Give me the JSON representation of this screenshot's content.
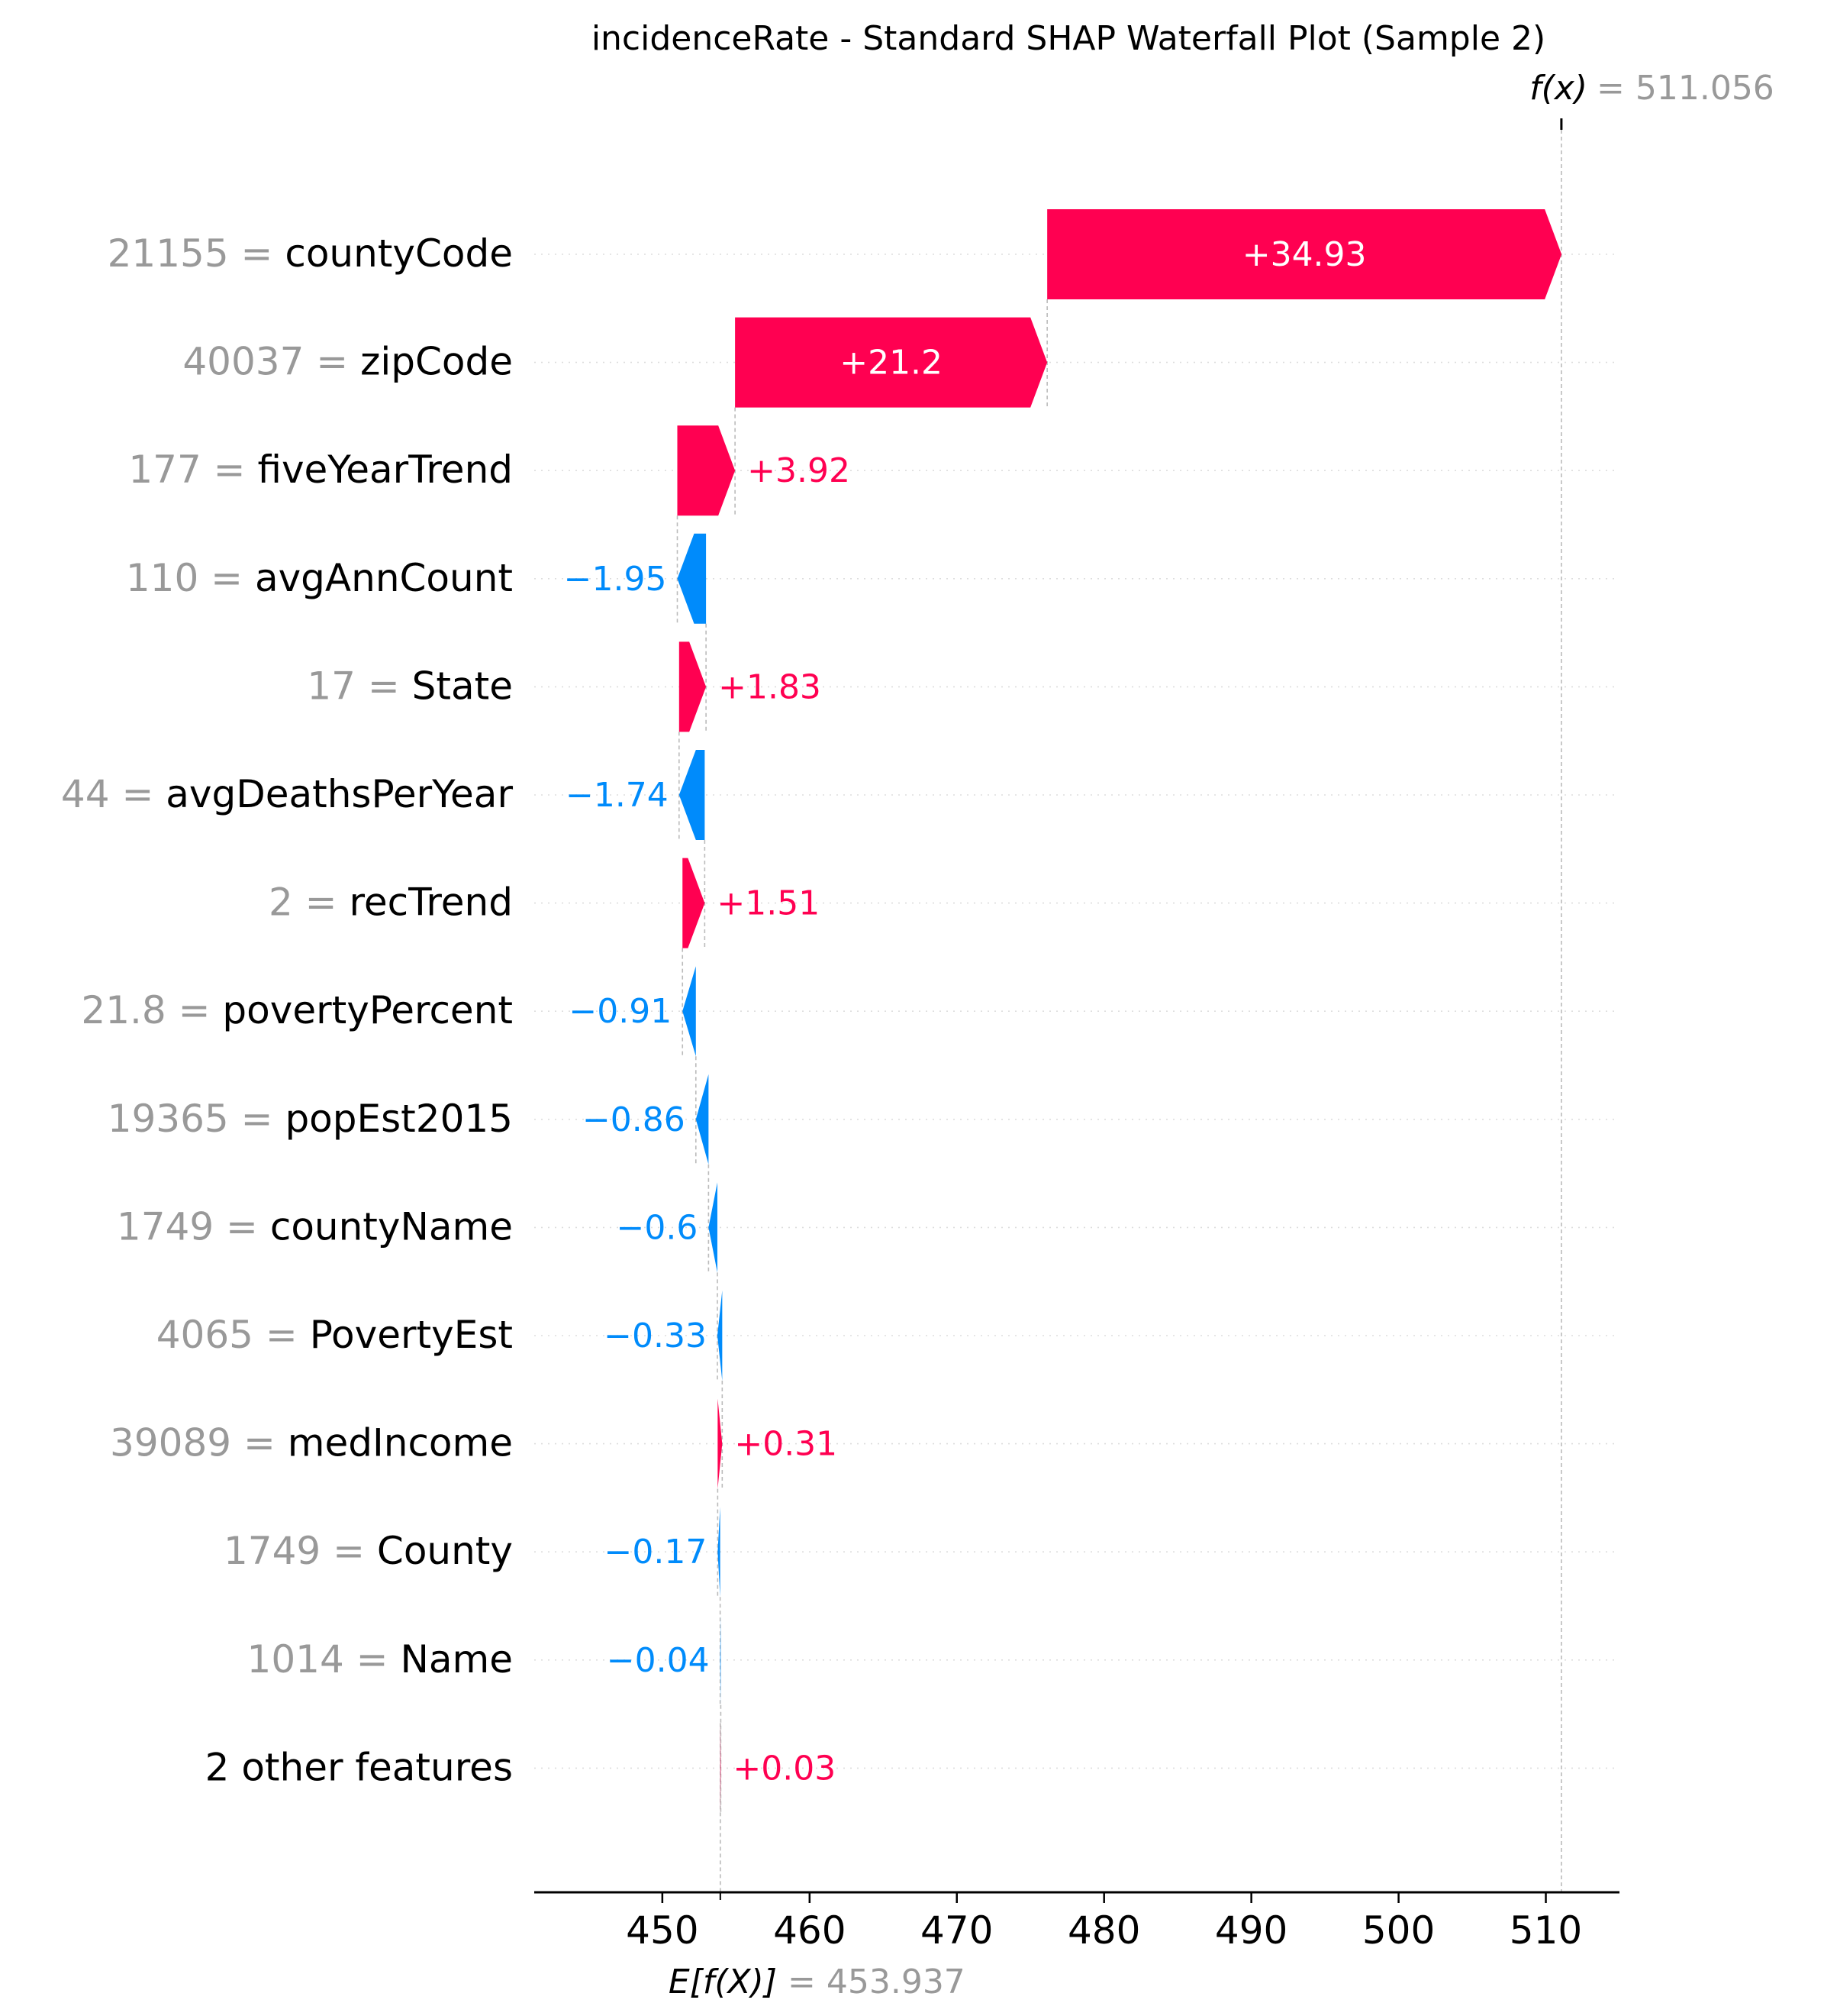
{
  "chart_data": {
    "type": "waterfall",
    "title": "incidenceRate - Standard SHAP Waterfall Plot (Sample 2)",
    "fx_label": "f(x)",
    "fx_value": "= 511.056",
    "fx": 511.056,
    "efx_label": "E[f(X)]",
    "efx_value": "= 453.937",
    "base_value": 453.937,
    "xlim": [
      441.3,
      515.0
    ],
    "x_ticks": [
      450,
      460,
      470,
      480,
      490,
      500,
      510
    ],
    "x_tick_labels": [
      "450",
      "460",
      "470",
      "480",
      "490",
      "500",
      "510"
    ],
    "features": [
      {
        "value": "21155 =",
        "name": "countyCode",
        "shap": 34.93,
        "label": "+34.93"
      },
      {
        "value": "40037 =",
        "name": "zipCode",
        "shap": 21.2,
        "label": "+21.2"
      },
      {
        "value": "177 =",
        "name": "fiveYearTrend",
        "shap": 3.92,
        "label": "+3.92"
      },
      {
        "value": "110 =",
        "name": "avgAnnCount",
        "shap": -1.95,
        "label": "−1.95"
      },
      {
        "value": "17 =",
        "name": "State",
        "shap": 1.83,
        "label": "+1.83"
      },
      {
        "value": "44 =",
        "name": "avgDeathsPerYear",
        "shap": -1.74,
        "label": "−1.74"
      },
      {
        "value": "2 =",
        "name": "recTrend",
        "shap": 1.51,
        "label": "+1.51"
      },
      {
        "value": "21.8 =",
        "name": "povertyPercent",
        "shap": -0.91,
        "label": "−0.91"
      },
      {
        "value": "19365 =",
        "name": "popEst2015",
        "shap": -0.86,
        "label": "−0.86"
      },
      {
        "value": "1749 =",
        "name": "countyName",
        "shap": -0.6,
        "label": "−0.6"
      },
      {
        "value": "4065 =",
        "name": "PovertyEst",
        "shap": -0.33,
        "label": "−0.33"
      },
      {
        "value": "39089 =",
        "name": "medIncome",
        "shap": 0.31,
        "label": "+0.31"
      },
      {
        "value": "1749 =",
        "name": "County",
        "shap": -0.17,
        "label": "−0.17"
      },
      {
        "value": "1014 =",
        "name": "Name",
        "shap": -0.04,
        "label": "−0.04"
      },
      {
        "value": "",
        "name": "2 other features",
        "shap": 0.03,
        "label": "+0.03"
      }
    ],
    "colors": {
      "positive": "#ff0051",
      "negative": "#008bfb",
      "feature_value": "#999999",
      "text": "#000000",
      "inner_label": "#ffffff"
    }
  }
}
